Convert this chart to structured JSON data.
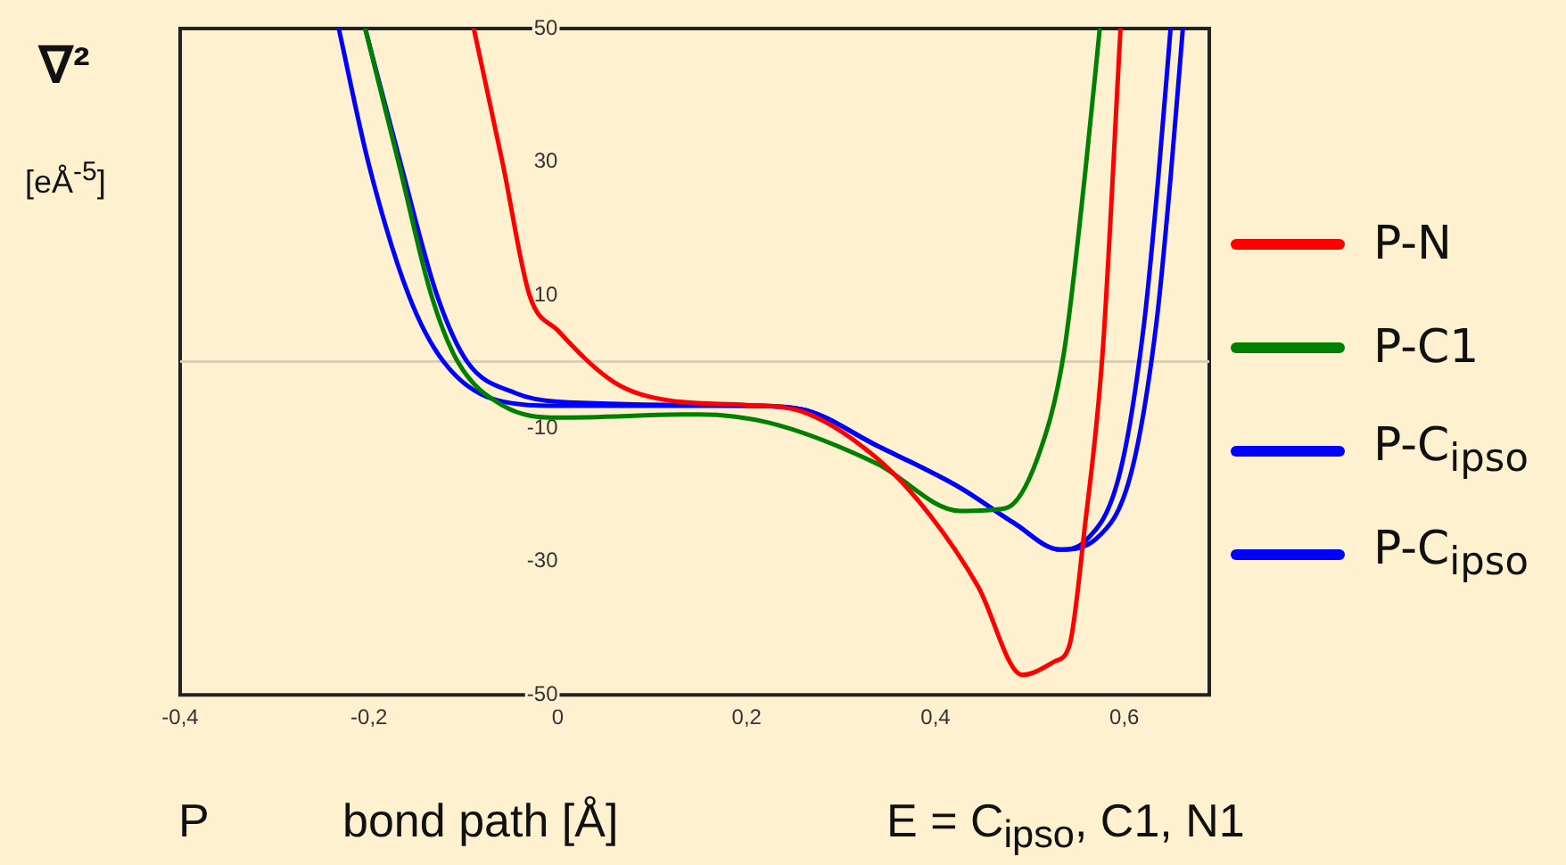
{
  "chart_data": {
    "type": "line",
    "title": "∇²",
    "ylabel": "[eÅ$^{-5}$]",
    "xlabel": "bond path [Å]",
    "annotations": [
      "P",
      "E = C$_{ipso}$, C1, N1"
    ],
    "xlim": [
      -0.4,
      0.69
    ],
    "ylim": [
      -50,
      50
    ],
    "xticks": [
      {
        "value": -0.4,
        "label": "-0,4"
      },
      {
        "value": -0.2,
        "label": "-0,2"
      },
      0,
      {
        "value": 0.2,
        "label": "0,2"
      },
      {
        "value": 0.4,
        "label": "0,4"
      },
      {
        "value": 0.6,
        "label": "0,6"
      }
    ],
    "yticks": [
      -50,
      -30,
      -10,
      10,
      30,
      50
    ],
    "grid": false,
    "legend": "right",
    "marker": "none",
    "line_style": "solid",
    "ref_lines": [
      {
        "axis": "y",
        "value": 0,
        "color": "#d8cfb4"
      }
    ],
    "series": [
      {
        "name": "P-N",
        "color": "#ff0000",
        "x": [
          -0.089,
          -0.058,
          -0.03,
          0,
          0.06,
          0.117,
          0.2,
          0.257,
          0.338,
          0.394,
          0.445,
          0.492,
          0.526,
          0.542,
          0.558,
          0.577,
          0.596
        ],
        "values": [
          50,
          29.5,
          10,
          4.7,
          -3.1,
          -5.8,
          -6.5,
          -7.4,
          -14.5,
          -23,
          -33.7,
          -47,
          -45,
          -42.5,
          -25,
          1.3,
          50
        ]
      },
      {
        "name": "P-C1",
        "color": "#008000",
        "x": [
          -0.204,
          -0.168,
          -0.134,
          -0.106,
          -0.058,
          0,
          0.15,
          0.225,
          0.338,
          0.426,
          0.474,
          0.508,
          0.536,
          0.558,
          0.574
        ],
        "values": [
          50,
          29.5,
          10,
          0,
          -6.6,
          -8.4,
          -7.9,
          -9.2,
          -15.3,
          -22.4,
          -22,
          -14.5,
          1.3,
          27.6,
          50
        ]
      },
      {
        "name": "P-C$_{ipso}$",
        "color": "#0000ff",
        "x": [
          -0.232,
          -0.2,
          -0.158,
          -0.121,
          -0.064,
          0,
          0.2,
          0.257,
          0.338,
          0.426,
          0.483,
          0.532,
          0.558,
          0.596,
          0.621,
          0.636,
          0.649
        ],
        "values": [
          50,
          29.5,
          10,
          0,
          -5.8,
          -6.6,
          -6.6,
          -7.1,
          -12.6,
          -18.9,
          -24.2,
          -28.2,
          -27,
          -16.3,
          5.8,
          27.6,
          50
        ]
      },
      {
        "name": "P-C$_{ipso}$",
        "color": "#0000ff",
        "x": [
          -0.204,
          -0.166,
          -0.128,
          -0.096,
          -0.045,
          0,
          0.2,
          0.257,
          0.338,
          0.426,
          0.483,
          0.532,
          0.57,
          0.608,
          0.634,
          0.649,
          0.662
        ],
        "values": [
          50,
          29.5,
          10,
          0,
          -4.7,
          -6,
          -6.6,
          -7.1,
          -12.6,
          -18.9,
          -24.2,
          -28.2,
          -26.6,
          -16.3,
          5.8,
          27.6,
          50
        ]
      }
    ]
  }
}
